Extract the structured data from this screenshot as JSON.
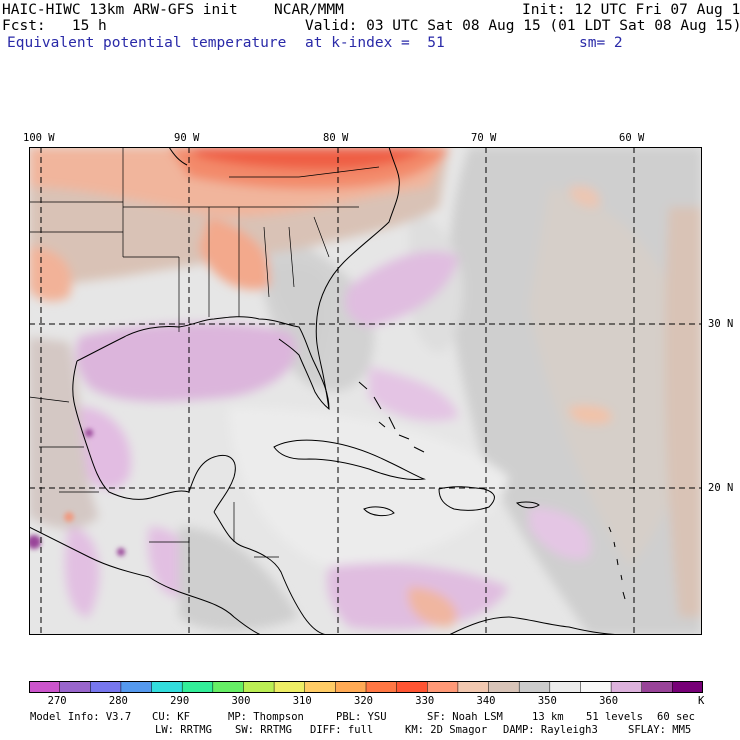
{
  "header": {
    "model_title": "HAIC-HIWC 13km ARW-GFS init",
    "center": "NCAR/MMM",
    "init_time": "Init: 12 UTC Fri 07 Aug 15",
    "forecast": "Fcst:   15 h",
    "valid_time": "Valid: 03 UTC Sat 08 Aug 15 (01 LDT Sat 08 Aug 15)",
    "field_name": "Equivalent potential temperature",
    "level": "at k-index =  51",
    "smoothing": "sm= 2"
  },
  "map": {
    "lon_labels": [
      "100 W",
      "90 W",
      "80 W",
      "70 W",
      "60 W"
    ],
    "lat_labels": [
      "30 N",
      "20 N"
    ],
    "place_markers": []
  },
  "colorbar": {
    "unit": "K",
    "tick_labels": [
      "270",
      "280",
      "290",
      "300",
      "310",
      "320",
      "330",
      "340",
      "350",
      "360"
    ],
    "colors": [
      "#cc55cc",
      "#9966cc",
      "#7777ee",
      "#5599ee",
      "#33dddd",
      "#33ee99",
      "#66ee66",
      "#bbee55",
      "#eeee66",
      "#ffcc66",
      "#ffaa55",
      "#ff7744",
      "#ff5533",
      "#ff9977",
      "#f2c8b0",
      "#d8c4b8",
      "#cccccc",
      "#ececec",
      "#f8f8f8",
      "#ddb2dd",
      "#994499",
      "#770077"
    ]
  },
  "footer": {
    "line1": [
      "Model Info: V3.7",
      "CU: KF",
      "MP: Thompson",
      "PBL: YSU",
      "SF: Noah LSM",
      "13 km",
      "51 levels",
      "60 sec"
    ],
    "line2": [
      "LW: RRTMG",
      "SW: RRTMG",
      "DIFF: full",
      "KM: 2D Smagor",
      "DAMP: Rayleigh3",
      "SFLAY: MM5"
    ]
  }
}
